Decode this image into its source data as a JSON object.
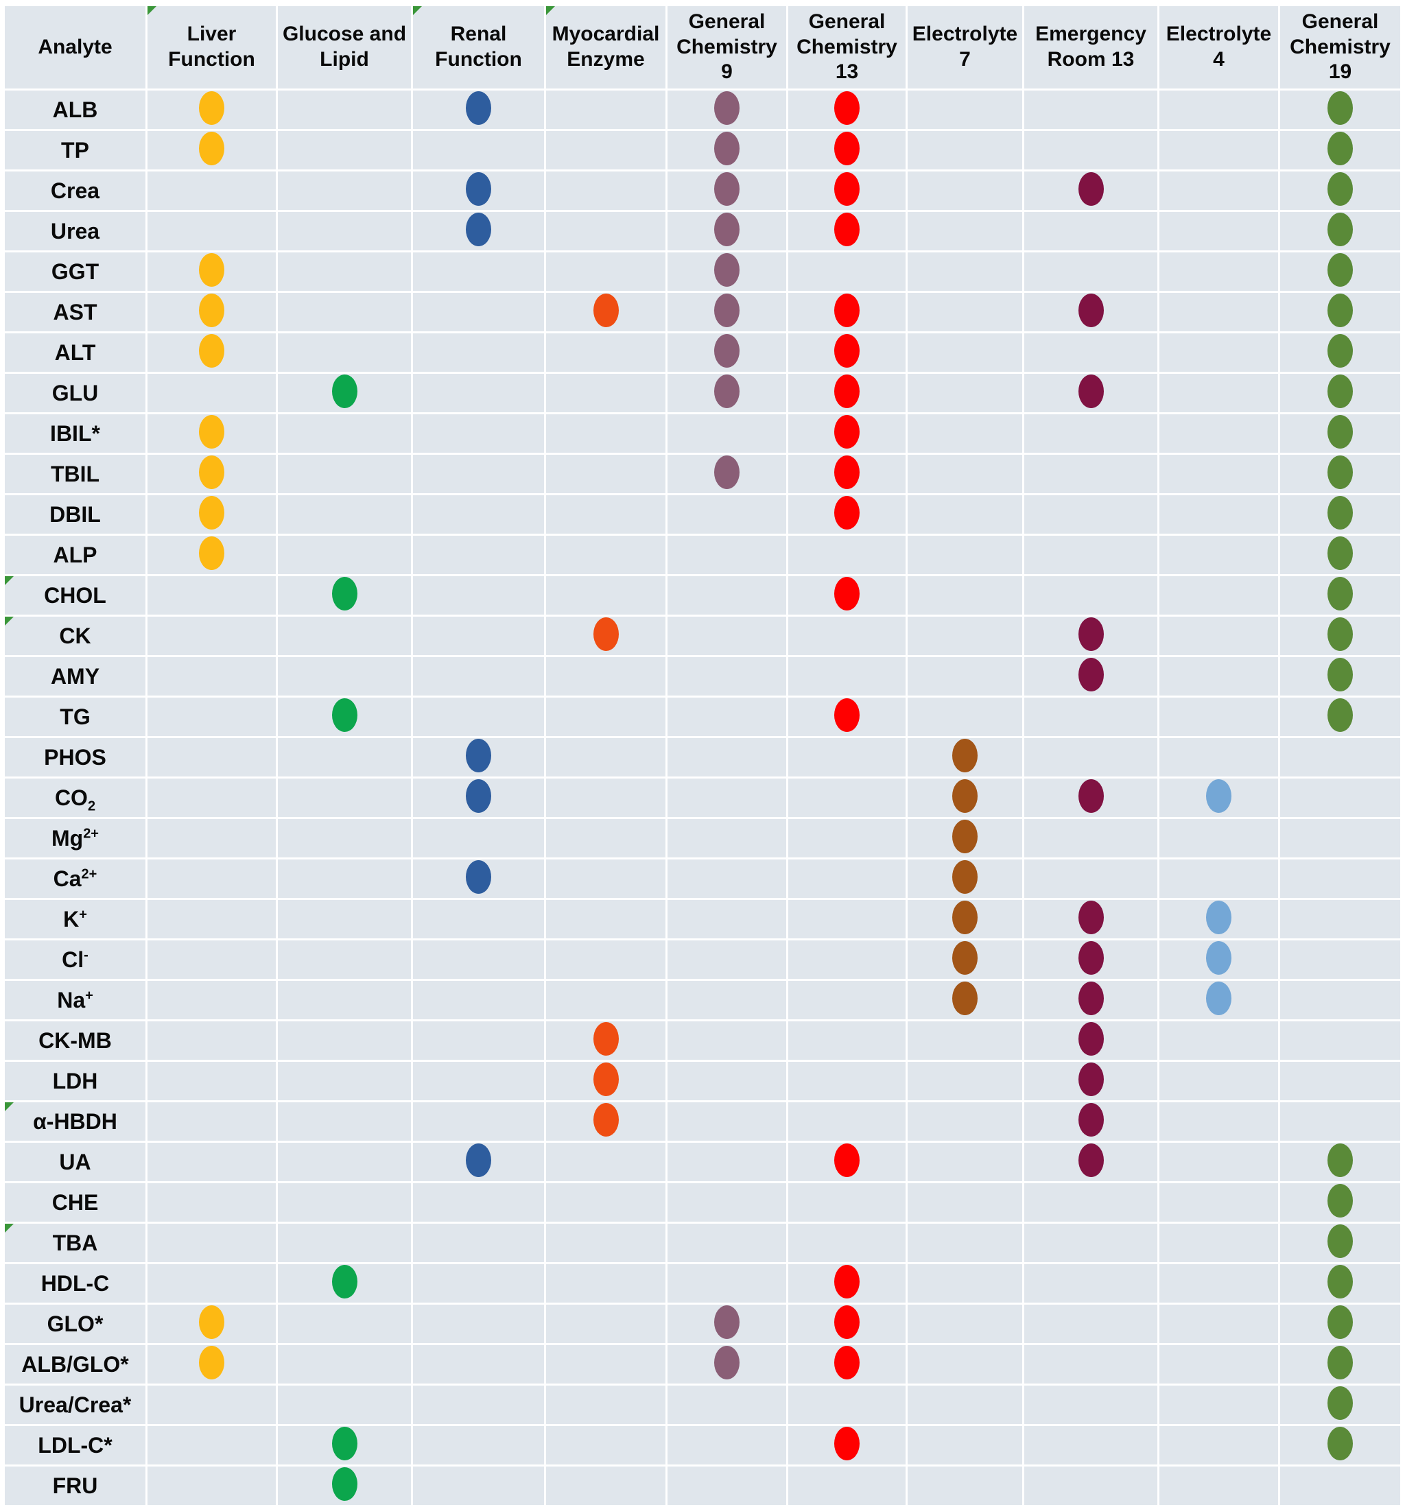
{
  "colors": {
    "cell_background": "#E0E6EC",
    "grid_lines": "#FFFFFF",
    "text": "#0A0A0A",
    "comment_marker_green": "#3A9639"
  },
  "chart_data": {
    "type": "table",
    "title": "",
    "corner_header": "Analyte",
    "legend_position": "none",
    "grid": true,
    "columns": [
      {
        "key": "liver",
        "label": "Liver Function",
        "dot_color": "#FDB913",
        "corner_marker": true
      },
      {
        "key": "glucose",
        "label": "Glucose and Lipid",
        "dot_color": "#0CA64C",
        "corner_marker": false
      },
      {
        "key": "renal",
        "label": "Renal Function",
        "dot_color": "#2E5D9E",
        "corner_marker": true
      },
      {
        "key": "myocardial",
        "label": "Myocardial Enzyme",
        "dot_color": "#EF4D12",
        "corner_marker": true
      },
      {
        "key": "gc9",
        "label": "General Chemistry 9",
        "dot_color": "#8A5E76",
        "corner_marker": false
      },
      {
        "key": "gc13",
        "label": "General Chemistry 13",
        "dot_color": "#FF0000",
        "corner_marker": false
      },
      {
        "key": "el7",
        "label": "Electrolyte 7",
        "dot_color": "#A25517",
        "corner_marker": false
      },
      {
        "key": "er13",
        "label": "Emergency Room 13",
        "dot_color": "#801242",
        "corner_marker": false
      },
      {
        "key": "el4",
        "label": "Electrolyte 4",
        "dot_color": "#74A7D6",
        "corner_marker": false
      },
      {
        "key": "gc19",
        "label": "General Chemistry 19",
        "dot_color": "#5A8A38",
        "corner_marker": false
      }
    ],
    "rows": [
      {
        "analyte": {
          "base": "ALB"
        },
        "panels": [
          "liver",
          "renal",
          "gc9",
          "gc13",
          "gc19"
        ],
        "corner_marker": false
      },
      {
        "analyte": {
          "base": "TP"
        },
        "panels": [
          "liver",
          "gc9",
          "gc13",
          "gc19"
        ],
        "corner_marker": false
      },
      {
        "analyte": {
          "base": "Crea"
        },
        "panels": [
          "renal",
          "gc9",
          "gc13",
          "er13",
          "gc19"
        ],
        "corner_marker": false
      },
      {
        "analyte": {
          "base": "Urea"
        },
        "panels": [
          "renal",
          "gc9",
          "gc13",
          "gc19"
        ],
        "corner_marker": false
      },
      {
        "analyte": {
          "base": "GGT"
        },
        "panels": [
          "liver",
          "gc9",
          "gc19"
        ],
        "corner_marker": false
      },
      {
        "analyte": {
          "base": "AST"
        },
        "panels": [
          "liver",
          "myocardial",
          "gc9",
          "gc13",
          "er13",
          "gc19"
        ],
        "corner_marker": false
      },
      {
        "analyte": {
          "base": "ALT"
        },
        "panels": [
          "liver",
          "gc9",
          "gc13",
          "gc19"
        ],
        "corner_marker": false
      },
      {
        "analyte": {
          "base": "GLU"
        },
        "panels": [
          "glucose",
          "gc9",
          "gc13",
          "er13",
          "gc19"
        ],
        "corner_marker": false
      },
      {
        "analyte": {
          "base": "IBIL*"
        },
        "panels": [
          "liver",
          "gc13",
          "gc19"
        ],
        "corner_marker": false
      },
      {
        "analyte": {
          "base": "TBIL"
        },
        "panels": [
          "liver",
          "gc9",
          "gc13",
          "gc19"
        ],
        "corner_marker": false
      },
      {
        "analyte": {
          "base": "DBIL"
        },
        "panels": [
          "liver",
          "gc13",
          "gc19"
        ],
        "corner_marker": false
      },
      {
        "analyte": {
          "base": "ALP"
        },
        "panels": [
          "liver",
          "gc19"
        ],
        "corner_marker": false
      },
      {
        "analyte": {
          "base": "CHOL"
        },
        "panels": [
          "glucose",
          "gc13",
          "gc19"
        ],
        "corner_marker": true
      },
      {
        "analyte": {
          "base": "CK"
        },
        "panels": [
          "myocardial",
          "er13",
          "gc19"
        ],
        "corner_marker": true
      },
      {
        "analyte": {
          "base": "AMY"
        },
        "panels": [
          "er13",
          "gc19"
        ],
        "corner_marker": false
      },
      {
        "analyte": {
          "base": "TG"
        },
        "panels": [
          "glucose",
          "gc13",
          "gc19"
        ],
        "corner_marker": false
      },
      {
        "analyte": {
          "base": "PHOS"
        },
        "panels": [
          "renal",
          "el7"
        ],
        "corner_marker": false
      },
      {
        "analyte": {
          "base": "CO",
          "sub": "2"
        },
        "panels": [
          "renal",
          "el7",
          "er13",
          "el4"
        ],
        "corner_marker": false
      },
      {
        "analyte": {
          "base": "Mg",
          "sup": "2+"
        },
        "panels": [
          "el7"
        ],
        "corner_marker": false
      },
      {
        "analyte": {
          "base": "Ca",
          "sup": "2+"
        },
        "panels": [
          "renal",
          "el7"
        ],
        "corner_marker": false
      },
      {
        "analyte": {
          "base": "K",
          "sup": "+"
        },
        "panels": [
          "el7",
          "er13",
          "el4"
        ],
        "corner_marker": false
      },
      {
        "analyte": {
          "base": "Cl",
          "sup": "-"
        },
        "panels": [
          "el7",
          "er13",
          "el4"
        ],
        "corner_marker": false
      },
      {
        "analyte": {
          "base": "Na",
          "sup": "+"
        },
        "panels": [
          "el7",
          "er13",
          "el4"
        ],
        "corner_marker": false
      },
      {
        "analyte": {
          "base": "CK-MB"
        },
        "panels": [
          "myocardial",
          "er13"
        ],
        "corner_marker": false
      },
      {
        "analyte": {
          "base": "LDH"
        },
        "panels": [
          "myocardial",
          "er13"
        ],
        "corner_marker": false
      },
      {
        "analyte": {
          "base": "α-HBDH"
        },
        "panels": [
          "myocardial",
          "er13"
        ],
        "corner_marker": true
      },
      {
        "analyte": {
          "base": "UA"
        },
        "panels": [
          "renal",
          "gc13",
          "er13",
          "gc19"
        ],
        "corner_marker": false
      },
      {
        "analyte": {
          "base": "CHE"
        },
        "panels": [
          "gc19"
        ],
        "corner_marker": false
      },
      {
        "analyte": {
          "base": "TBA"
        },
        "panels": [
          "gc19"
        ],
        "corner_marker": true
      },
      {
        "analyte": {
          "base": "HDL-C"
        },
        "panels": [
          "glucose",
          "gc13",
          "gc19"
        ],
        "corner_marker": false
      },
      {
        "analyte": {
          "base": "GLO*"
        },
        "panels": [
          "liver",
          "gc9",
          "gc13",
          "gc19"
        ],
        "corner_marker": false
      },
      {
        "analyte": {
          "base": "ALB/GLO*"
        },
        "panels": [
          "liver",
          "gc9",
          "gc13",
          "gc19"
        ],
        "corner_marker": false
      },
      {
        "analyte": {
          "base": "Urea/Crea*"
        },
        "panels": [
          "gc19"
        ],
        "corner_marker": false
      },
      {
        "analyte": {
          "base": "LDL-C*"
        },
        "panels": [
          "glucose",
          "gc13",
          "gc19"
        ],
        "corner_marker": false
      },
      {
        "analyte": {
          "base": "FRU"
        },
        "panels": [
          "glucose"
        ],
        "corner_marker": false
      }
    ]
  }
}
